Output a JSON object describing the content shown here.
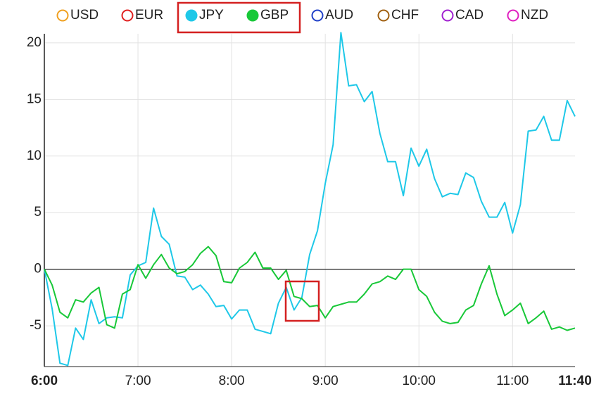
{
  "chart_data": {
    "type": "line",
    "x": [
      360,
      365,
      370,
      375,
      380,
      385,
      390,
      395,
      400,
      405,
      410,
      415,
      420,
      425,
      430,
      435,
      440,
      445,
      450,
      455,
      460,
      465,
      470,
      475,
      480,
      485,
      490,
      495,
      500,
      505,
      510,
      515,
      520,
      525,
      530,
      535,
      540,
      545,
      550,
      555,
      560,
      565,
      570,
      575,
      580,
      585,
      590,
      595,
      600,
      605,
      610,
      615,
      620,
      625,
      630,
      635,
      640,
      645,
      650,
      655,
      660,
      665,
      670,
      675,
      680,
      685,
      690,
      695,
      700
    ],
    "xlim": [
      360,
      700
    ],
    "xticks": [
      {
        "value": 360,
        "label": "6:00"
      },
      {
        "value": 420,
        "label": "7:00"
      },
      {
        "value": 480,
        "label": "8:00"
      },
      {
        "value": 540,
        "label": "9:00"
      },
      {
        "value": 600,
        "label": "10:00"
      },
      {
        "value": 660,
        "label": "11:00"
      },
      {
        "value": 700,
        "label": "11:40"
      }
    ],
    "ylim": [
      -8.6,
      20.8
    ],
    "yticks": [
      -5,
      0,
      5,
      10,
      15,
      20
    ],
    "grid": true,
    "legend": "top",
    "series": [
      {
        "name": "USD",
        "color": "#f0a020",
        "visible": false
      },
      {
        "name": "EUR",
        "color": "#e02020",
        "visible": false
      },
      {
        "name": "JPY",
        "color": "#1ec8e8",
        "visible": true,
        "values": [
          0,
          -3.5,
          -8.3,
          -8.5,
          -5.2,
          -6.2,
          -2.7,
          -4.8,
          -4.3,
          -4.2,
          -4.3,
          -0.5,
          0.3,
          0.6,
          5.4,
          2.9,
          2.2,
          -0.6,
          -0.7,
          -1.8,
          -1.4,
          -2.2,
          -3.3,
          -3.2,
          -4.4,
          -3.6,
          -3.6,
          -5.3,
          -5.5,
          -5.7,
          -3.0,
          -1.6,
          -3.6,
          -2.5,
          1.3,
          3.4,
          7.6,
          11.0,
          20.9,
          16.2,
          16.3,
          14.8,
          15.7,
          12.0,
          9.5,
          9.5,
          6.5,
          10.7,
          9.1,
          10.6,
          8.0,
          6.4,
          6.7,
          6.6,
          8.5,
          8.1,
          6.0,
          4.6,
          4.6,
          5.9,
          3.2,
          5.7,
          12.2,
          12.3,
          13.5,
          11.4,
          11.4,
          14.9,
          13.5
        ]
      },
      {
        "name": "GBP",
        "color": "#18c838",
        "visible": true,
        "values": [
          0,
          -1.4,
          -3.8,
          -4.3,
          -2.7,
          -2.9,
          -2.1,
          -1.6,
          -4.9,
          -5.2,
          -2.2,
          -1.8,
          0.4,
          -0.8,
          0.4,
          1.3,
          0.1,
          -0.4,
          -0.2,
          0.4,
          1.4,
          2.0,
          1.2,
          -1.1,
          -1.2,
          0.1,
          0.6,
          1.5,
          0.1,
          0.1,
          -0.9,
          -0.1,
          -2.4,
          -2.6,
          -3.3,
          -3.2,
          -4.3,
          -3.3,
          -3.1,
          -2.9,
          -2.9,
          -2.2,
          -1.3,
          -1.1,
          -0.6,
          -0.9,
          0,
          0,
          -1.8,
          -2.4,
          -3.8,
          -4.6,
          -4.8,
          -4.7,
          -3.6,
          -3.2,
          -1.3,
          0.3,
          -2.2,
          -4.1,
          -3.6,
          -3.0,
          -4.8,
          -4.3,
          -3.7,
          -5.3,
          -5.1,
          -5.4,
          -5.2
        ]
      },
      {
        "name": "AUD",
        "color": "#2040c8",
        "visible": false
      },
      {
        "name": "CHF",
        "color": "#a06010",
        "visible": false
      },
      {
        "name": "CAD",
        "color": "#a020d0",
        "visible": false
      },
      {
        "name": "NZD",
        "color": "#e020c0",
        "visible": false
      }
    ]
  }
}
